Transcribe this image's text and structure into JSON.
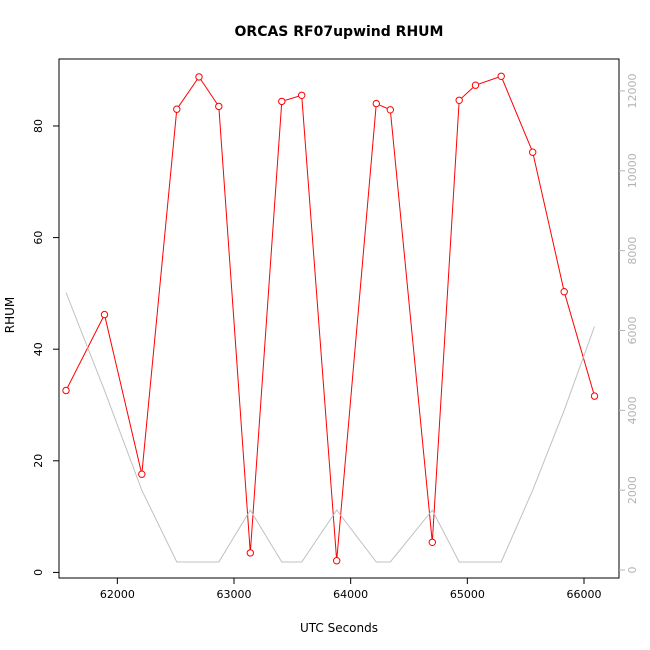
{
  "chart_data": {
    "type": "line",
    "title": "ORCAS RF07upwind RHUM",
    "xlabel": "UTC Seconds",
    "ylabel": "RHUM",
    "xlim": [
      61500,
      66300
    ],
    "ylim": [
      -1,
      92
    ],
    "y2lim": [
      -200,
      12800
    ],
    "x_ticks": [
      62000,
      63000,
      64000,
      65000,
      66000
    ],
    "y_ticks": [
      0,
      20,
      40,
      60,
      80
    ],
    "y2_ticks": [
      0,
      2000,
      4000,
      6000,
      8000,
      10000,
      12000
    ],
    "colors": {
      "primary": "#ff0000",
      "secondary": "#c0c0c0"
    },
    "grid": false,
    "series": [
      {
        "axis": "left",
        "markers": "open-circle",
        "x": [
          61560,
          61890,
          62210,
          62510,
          62700,
          62870,
          63140,
          63410,
          63580,
          63880,
          64220,
          64340,
          64700,
          64930,
          65070,
          65290,
          65560,
          65830,
          66090
        ],
        "values": [
          32.6,
          46.2,
          17.6,
          83.0,
          88.8,
          83.5,
          3.5,
          84.4,
          85.5,
          2.1,
          84.0,
          82.9,
          5.4,
          84.6,
          87.3,
          88.9,
          75.3,
          50.3,
          31.6
        ]
      },
      {
        "axis": "right",
        "x": [
          61560,
          61890,
          62210,
          62510,
          62700,
          62870,
          63140,
          63410,
          63580,
          63880,
          64220,
          64340,
          64700,
          64930,
          65070,
          65290,
          65560,
          65830,
          66090
        ],
        "values": [
          6950,
          4500,
          2000,
          200,
          200,
          200,
          1500,
          200,
          200,
          1500,
          200,
          200,
          1500,
          200,
          200,
          200,
          2000,
          4000,
          6100
        ]
      }
    ]
  }
}
